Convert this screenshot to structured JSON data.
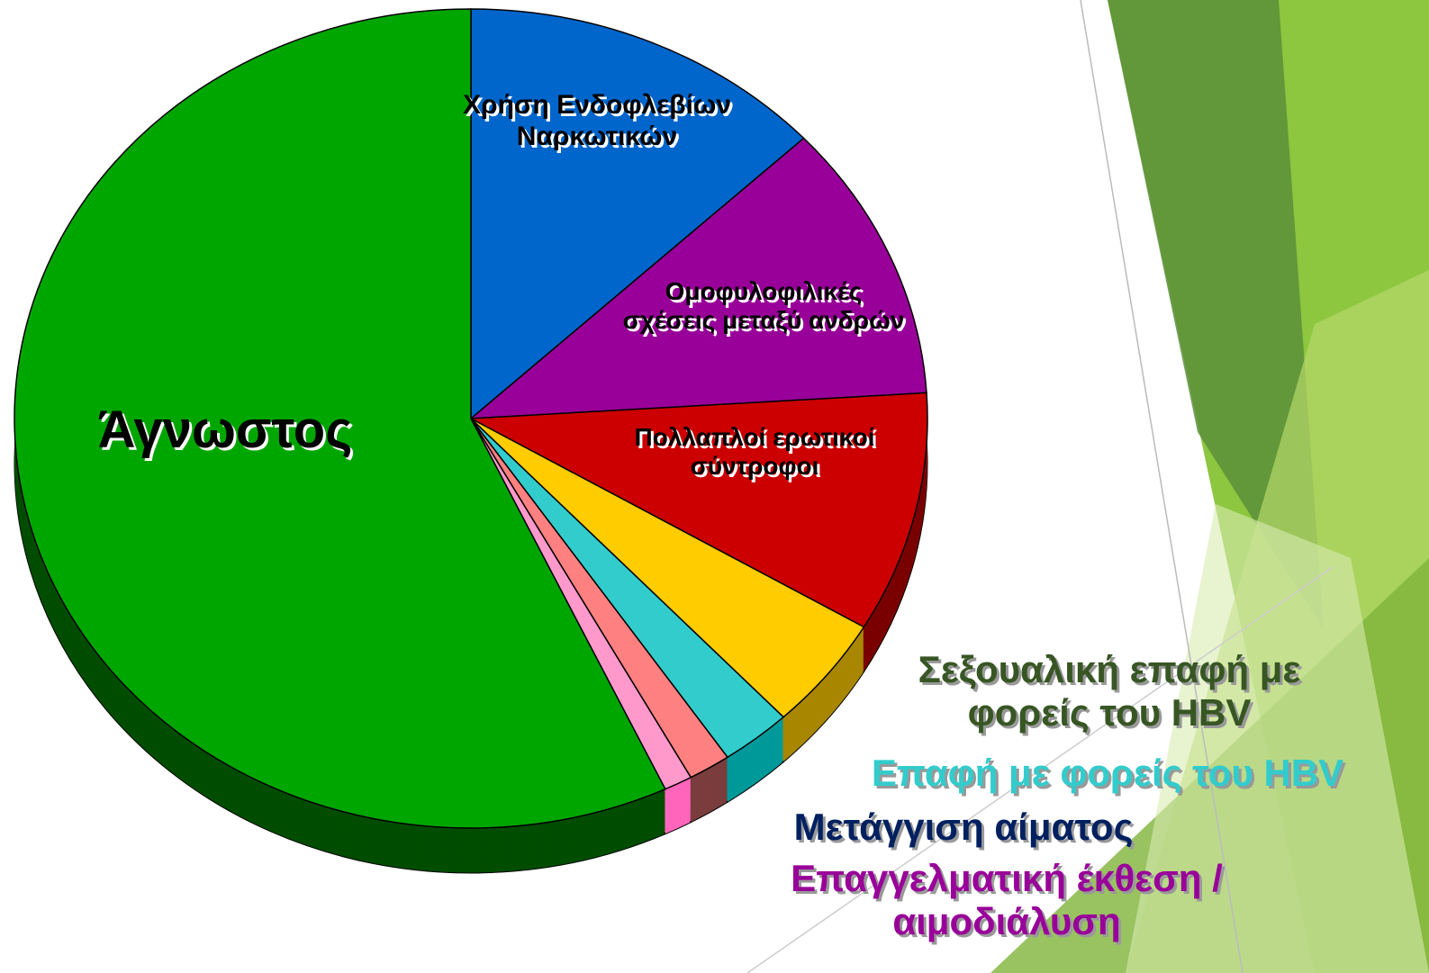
{
  "chart_data": {
    "type": "pie",
    "categories": [
      "Χρήση Ενδοφλεβίων Ναρκωτικών",
      "Ομοφυλοφιλικές σχέσεις μεταξύ ανδρών",
      "Πολλαπλοί ερωτικοί σύντροφοι",
      "Σεξουαλική επαφή με φορείς του HBV",
      "Επαφή με φορείς του HBV",
      "Μετάγγιση αίματος",
      "Επαγγελματική έκθεση / αιμοδιάλυση",
      "Άγνωστος"
    ],
    "values": [
      13,
      11,
      9.5,
      4.5,
      2.5,
      1.5,
      1,
      57
    ],
    "colors": [
      "#0066cc",
      "#990099",
      "#cc0000",
      "#ffcc00",
      "#33cccc",
      "#ff8080",
      "#ff99cc",
      "#00a600"
    ],
    "side_colors": [
      "#003d7a",
      "#5c005c",
      "#7a0000",
      "#a88600",
      "#009999",
      "#7a3d3d",
      "#ff66bb",
      "#004d00"
    ],
    "label_colors": [
      "#000000",
      "#000000",
      "#000000",
      "#375623",
      "#33cccc",
      "#002060",
      "#990099",
      "#000000"
    ]
  }
}
